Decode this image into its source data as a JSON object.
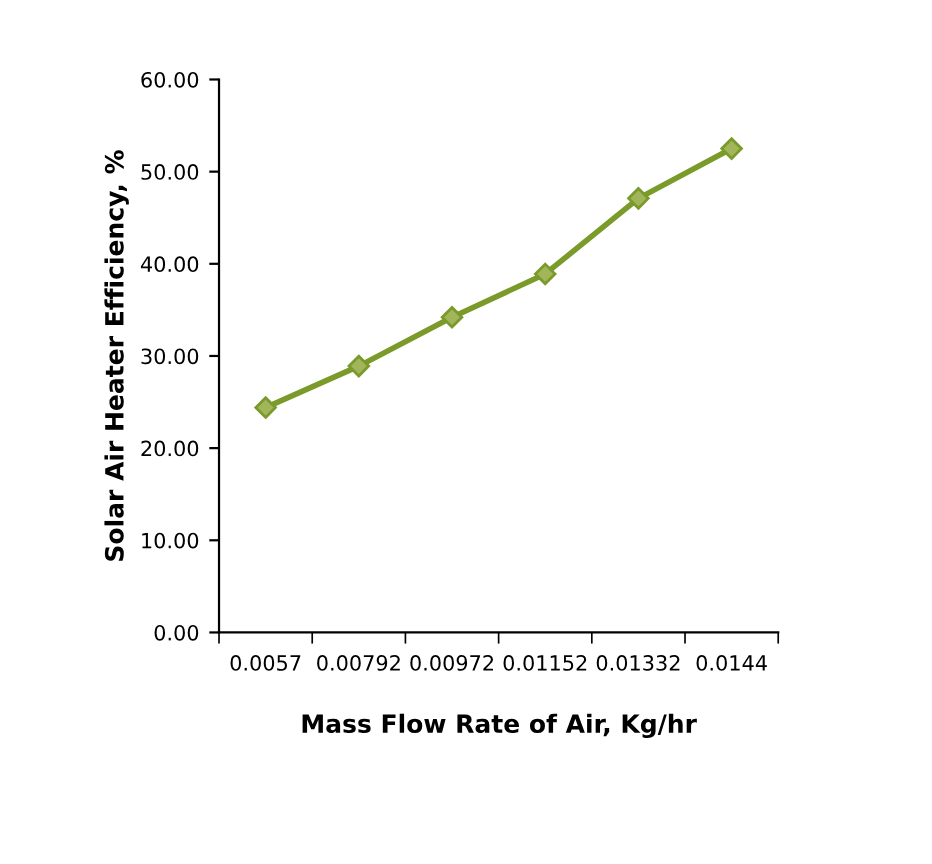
{
  "chart_data": {
    "type": "line",
    "xlabel": "Mass Flow Rate of Air, Kg/hr",
    "ylabel": "Solar Air Heater Efficiency, %",
    "categories": [
      "0.0057",
      "0.00792",
      "0.00972",
      "0.01152",
      "0.01332",
      "0.0144"
    ],
    "series": [
      {
        "color": "#7a9a2a",
        "values": [
          24.4,
          28.9,
          34.2,
          38.9,
          47.1,
          52.5
        ]
      }
    ],
    "ylim": [
      0,
      60
    ],
    "yticks": [
      {
        "value": 0,
        "label": "0.00"
      },
      {
        "value": 10,
        "label": "10.00"
      },
      {
        "value": 20,
        "label": "20.00"
      },
      {
        "value": 30,
        "label": "30.00"
      },
      {
        "value": 40,
        "label": "40.00"
      },
      {
        "value": 50,
        "label": "50.00"
      },
      {
        "value": 60,
        "label": "60.00"
      }
    ],
    "grid": false,
    "legend": false,
    "marker": "diamond",
    "line_style": "solid"
  }
}
